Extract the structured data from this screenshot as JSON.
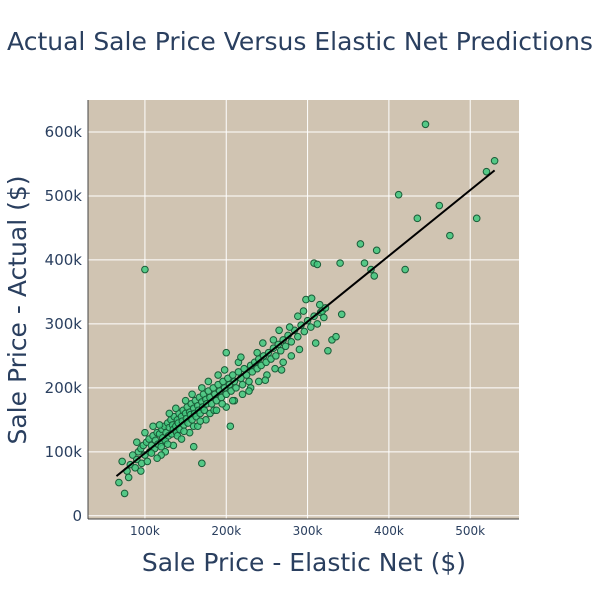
{
  "chart_data": {
    "type": "scatter",
    "title": "Actual Sale Price Versus Elastic Net Predictions",
    "xlabel": "Sale Price - Elastic Net ($)",
    "ylabel": "Sale Price - Actual ($)",
    "xlim": [
      30000,
      560000
    ],
    "ylim": [
      -5000,
      650000
    ],
    "x_ticks": [
      {
        "value": 100000,
        "label": "100k"
      },
      {
        "value": 200000,
        "label": "200k"
      },
      {
        "value": 300000,
        "label": "300k"
      },
      {
        "value": 400000,
        "label": "400k"
      },
      {
        "value": 500000,
        "label": "500k"
      }
    ],
    "y_ticks": [
      {
        "value": 0,
        "label": "0"
      },
      {
        "value": 100000,
        "label": "100k"
      },
      {
        "value": 200000,
        "label": "200k"
      },
      {
        "value": 300000,
        "label": "300k"
      },
      {
        "value": 400000,
        "label": "400k"
      },
      {
        "value": 500000,
        "label": "500k"
      },
      {
        "value": 600000,
        "label": "600k"
      }
    ],
    "grid": true,
    "colors": {
      "plot_background": "#d0c4b2",
      "point_fill": "#3ec97e",
      "point_stroke": "#1a5c38",
      "fit_line": "#000000",
      "text": "#2a3f5f"
    },
    "fit_line": {
      "x": [
        65000,
        530000
      ],
      "y": [
        62000,
        540000
      ]
    },
    "series": [
      {
        "points": [
          [
            68000,
            52000
          ],
          [
            75000,
            35000
          ],
          [
            72000,
            85000
          ],
          [
            78000,
            70000
          ],
          [
            80000,
            60000
          ],
          [
            82000,
            80000
          ],
          [
            85000,
            95000
          ],
          [
            88000,
            75000
          ],
          [
            90000,
            88000
          ],
          [
            92000,
            100000
          ],
          [
            95000,
            105000
          ],
          [
            96000,
            82000
          ],
          [
            98000,
            110000
          ],
          [
            100000,
            95000
          ],
          [
            102000,
            115000
          ],
          [
            103000,
            85000
          ],
          [
            105000,
            120000
          ],
          [
            106000,
            100000
          ],
          [
            108000,
            110000
          ],
          [
            110000,
            125000
          ],
          [
            112000,
            105000
          ],
          [
            113000,
            118000
          ],
          [
            115000,
            130000
          ],
          [
            116000,
            112000
          ],
          [
            118000,
            128000
          ],
          [
            120000,
            115000
          ],
          [
            121000,
            135000
          ],
          [
            122000,
            122000
          ],
          [
            124000,
            140000
          ],
          [
            125000,
            118000
          ],
          [
            126000,
            130000
          ],
          [
            128000,
            145000
          ],
          [
            129000,
            125000
          ],
          [
            130000,
            138000
          ],
          [
            132000,
            150000
          ],
          [
            133000,
            128000
          ],
          [
            134000,
            142000
          ],
          [
            135000,
            135000
          ],
          [
            136000,
            155000
          ],
          [
            138000,
            140000
          ],
          [
            139000,
            130000
          ],
          [
            140000,
            150000
          ],
          [
            141000,
            145000
          ],
          [
            142000,
            160000
          ],
          [
            143000,
            135000
          ],
          [
            145000,
            155000
          ],
          [
            146000,
            148000
          ],
          [
            147000,
            165000
          ],
          [
            148000,
            142000
          ],
          [
            150000,
            160000
          ],
          [
            151000,
            152000
          ],
          [
            152000,
            170000
          ],
          [
            153000,
            145000
          ],
          [
            155000,
            162000
          ],
          [
            156000,
            158000
          ],
          [
            157000,
            175000
          ],
          [
            158000,
            150000
          ],
          [
            160000,
            168000
          ],
          [
            161000,
            160000
          ],
          [
            162000,
            180000
          ],
          [
            163000,
            155000
          ],
          [
            165000,
            172000
          ],
          [
            166000,
            165000
          ],
          [
            167000,
            185000
          ],
          [
            168000,
            160000
          ],
          [
            170000,
            178000
          ],
          [
            171000,
            170000
          ],
          [
            172000,
            190000
          ],
          [
            173000,
            165000
          ],
          [
            175000,
            182000
          ],
          [
            176000,
            175000
          ],
          [
            178000,
            195000
          ],
          [
            180000,
            185000
          ],
          [
            182000,
            175000
          ],
          [
            184000,
            200000
          ],
          [
            186000,
            190000
          ],
          [
            188000,
            180000
          ],
          [
            190000,
            205000
          ],
          [
            192000,
            195000
          ],
          [
            194000,
            185000
          ],
          [
            196000,
            210000
          ],
          [
            198000,
            200000
          ],
          [
            200000,
            190000
          ],
          [
            202000,
            215000
          ],
          [
            204000,
            205000
          ],
          [
            206000,
            195000
          ],
          [
            208000,
            220000
          ],
          [
            210000,
            210000
          ],
          [
            212000,
            200000
          ],
          [
            215000,
            225000
          ],
          [
            218000,
            215000
          ],
          [
            220000,
            205000
          ],
          [
            222000,
            230000
          ],
          [
            225000,
            220000
          ],
          [
            228000,
            210000
          ],
          [
            230000,
            235000
          ],
          [
            232000,
            225000
          ],
          [
            235000,
            240000
          ],
          [
            238000,
            230000
          ],
          [
            240000,
            245000
          ],
          [
            243000,
            235000
          ],
          [
            246000,
            250000
          ],
          [
            249000,
            240000
          ],
          [
            252000,
            255000
          ],
          [
            255000,
            245000
          ],
          [
            258000,
            262000
          ],
          [
            261000,
            250000
          ],
          [
            264000,
            268000
          ],
          [
            267000,
            258000
          ],
          [
            270000,
            275000
          ],
          [
            273000,
            265000
          ],
          [
            276000,
            282000
          ],
          [
            280000,
            272000
          ],
          [
            284000,
            290000
          ],
          [
            288000,
            280000
          ],
          [
            292000,
            298000
          ],
          [
            296000,
            288000
          ],
          [
            300000,
            305000
          ],
          [
            304000,
            295000
          ],
          [
            308000,
            312000
          ],
          [
            312000,
            300000
          ],
          [
            316000,
            318000
          ],
          [
            320000,
            310000
          ],
          [
            110000,
            140000
          ],
          [
            125000,
            100000
          ],
          [
            130000,
            160000
          ],
          [
            140000,
            125000
          ],
          [
            150000,
            180000
          ],
          [
            160000,
            140000
          ],
          [
            170000,
            200000
          ],
          [
            180000,
            160000
          ],
          [
            190000,
            220000
          ],
          [
            200000,
            170000
          ],
          [
            200000,
            255000
          ],
          [
            210000,
            180000
          ],
          [
            215000,
            240000
          ],
          [
            220000,
            190000
          ],
          [
            230000,
            200000
          ],
          [
            240000,
            210000
          ],
          [
            245000,
            270000
          ],
          [
            250000,
            220000
          ],
          [
            260000,
            230000
          ],
          [
            265000,
            290000
          ],
          [
            270000,
            240000
          ],
          [
            280000,
            250000
          ],
          [
            290000,
            260000
          ],
          [
            295000,
            320000
          ],
          [
            310000,
            270000
          ],
          [
            120000,
            95000
          ],
          [
            135000,
            110000
          ],
          [
            145000,
            120000
          ],
          [
            155000,
            130000
          ],
          [
            165000,
            140000
          ],
          [
            175000,
            150000
          ],
          [
            185000,
            165000
          ],
          [
            195000,
            175000
          ],
          [
            205000,
            140000
          ],
          [
            170000,
            82000
          ],
          [
            160000,
            108000
          ],
          [
            100000,
            385000
          ],
          [
            120000,
            108000
          ],
          [
            115000,
            90000
          ],
          [
            95000,
            70000
          ],
          [
            90000,
            115000
          ],
          [
            100000,
            130000
          ],
          [
            108000,
            98000
          ],
          [
            118000,
            142000
          ],
          [
            128000,
            112000
          ],
          [
            138000,
            168000
          ],
          [
            148000,
            132000
          ],
          [
            158000,
            190000
          ],
          [
            168000,
            148000
          ],
          [
            178000,
            210000
          ],
          [
            188000,
            165000
          ],
          [
            198000,
            228000
          ],
          [
            208000,
            180000
          ],
          [
            218000,
            248000
          ],
          [
            228000,
            195000
          ],
          [
            238000,
            255000
          ],
          [
            248000,
            212000
          ],
          [
            258000,
            275000
          ],
          [
            268000,
            228000
          ],
          [
            278000,
            295000
          ],
          [
            288000,
            312000
          ],
          [
            298000,
            338000
          ],
          [
            305000,
            340000
          ],
          [
            308000,
            395000
          ],
          [
            312000,
            393000
          ],
          [
            315000,
            330000
          ],
          [
            318000,
            320000
          ],
          [
            322000,
            325000
          ],
          [
            325000,
            258000
          ],
          [
            330000,
            275000
          ],
          [
            335000,
            280000
          ],
          [
            340000,
            395000
          ],
          [
            342000,
            315000
          ],
          [
            365000,
            425000
          ],
          [
            370000,
            395000
          ],
          [
            378000,
            385000
          ],
          [
            382000,
            375000
          ],
          [
            385000,
            415000
          ],
          [
            412000,
            502000
          ],
          [
            420000,
            385000
          ],
          [
            435000,
            465000
          ],
          [
            445000,
            612000
          ],
          [
            462000,
            485000
          ],
          [
            475000,
            438000
          ],
          [
            508000,
            465000
          ],
          [
            520000,
            538000
          ],
          [
            530000,
            555000
          ]
        ]
      }
    ]
  }
}
